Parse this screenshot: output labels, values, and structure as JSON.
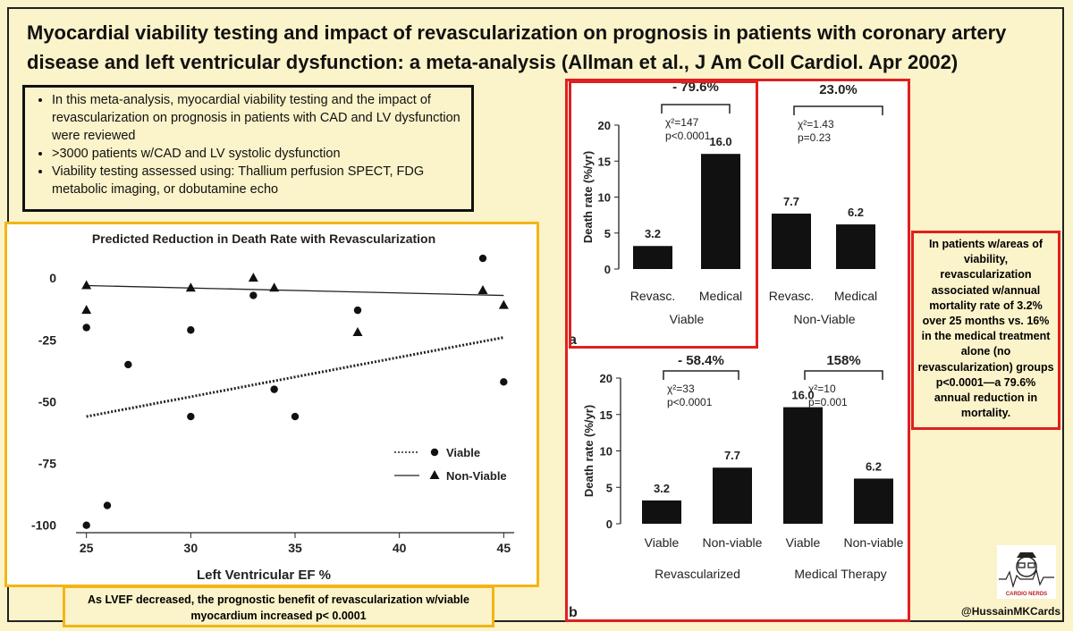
{
  "title": "Myocardial viability testing and impact of revascularization on prognosis in patients with coronary artery disease and left ventricular dysfunction: a meta-analysis (Allman et al., J Am Coll Cardiol. Apr 2002)",
  "bullets": [
    "In this meta-analysis, myocardial viability testing and the impact of revascularization on prognosis in patients with CAD and LV dysfunction were reviewed",
    ">3000 patients w/CAD and LV systolic dysfunction",
    "Viability testing assessed using: Thallium perfusion SPECT, FDG metabolic imaging, or dobutamine echo"
  ],
  "left_caption": "As LVEF decreased, the prognostic benefit of  revascularization w/viable myocardium increased p< 0.0001",
  "side_note": "In patients w/areas of viability, revascularization associated w/annual mortality rate of 3.2% over 25 months vs. 16% in the medical treatment alone (no revascularization) groups p<0.0001—a 79.6% annual reduction in mortality.",
  "handle": "@HussainMKCards",
  "logo_text": "CARDIO NERDS",
  "chart_data": [
    {
      "type": "scatter",
      "title": "Predicted Reduction in Death Rate with Revascularization",
      "xlabel": "Left Ventricular EF %",
      "ylabel": "",
      "xlim": [
        24.5,
        45.5
      ],
      "ylim": [
        -103,
        12
      ],
      "xticks": [
        25,
        30,
        35,
        40,
        45
      ],
      "yticks": [
        0,
        -25,
        -50,
        -75,
        -100
      ],
      "legend": {
        "position": "bottom-right",
        "entries": [
          "Viable",
          "Non-Viable"
        ]
      },
      "series": [
        {
          "name": "Viable",
          "marker": "circle",
          "points": [
            [
              25,
              -20
            ],
            [
              25,
              -100
            ],
            [
              26,
              -92
            ],
            [
              27,
              -35
            ],
            [
              30,
              -21
            ],
            [
              30,
              -56
            ],
            [
              33,
              -7
            ],
            [
              34,
              -45
            ],
            [
              35,
              -56
            ],
            [
              38,
              -13
            ],
            [
              44,
              8
            ],
            [
              45,
              -42
            ]
          ]
        },
        {
          "name": "Non-Viable",
          "marker": "triangle",
          "points": [
            [
              25,
              -3
            ],
            [
              25,
              -13
            ],
            [
              30,
              -4
            ],
            [
              33,
              0
            ],
            [
              34,
              -4
            ],
            [
              38,
              -22
            ],
            [
              44,
              -5
            ],
            [
              45,
              -11
            ]
          ]
        }
      ],
      "fit_lines": [
        {
          "series": "Viable",
          "style": "dotted",
          "from": [
            25,
            -56
          ],
          "to": [
            45,
            -24
          ]
        },
        {
          "series": "Non-Viable",
          "style": "solid",
          "from": [
            25,
            -3
          ],
          "to": [
            45,
            -7
          ]
        }
      ]
    },
    {
      "type": "bar",
      "label": "a",
      "ylabel": "Death rate (%/yr)",
      "ylim": [
        0,
        20
      ],
      "yticks": [
        0,
        5,
        10,
        15,
        20
      ],
      "categories": [
        "Revasc.",
        "Medical",
        "Revasc.",
        "Medical"
      ],
      "groups": [
        "Viable",
        "Non-Viable"
      ],
      "values": [
        3.2,
        16.0,
        7.7,
        6.2
      ],
      "value_labels": [
        "3.2",
        "16.0",
        "7.7",
        "6.2"
      ],
      "annotations": [
        {
          "group": "Viable",
          "pct": "- 79.6%",
          "chi": "χ²=147",
          "p": "p<0.0001"
        },
        {
          "group": "Non-Viable",
          "pct": "23.0%",
          "chi": "χ²=1.43",
          "p": "p=0.23"
        }
      ]
    },
    {
      "type": "bar",
      "label": "b",
      "ylabel": "Death rate (%/yr)",
      "ylim": [
        0,
        20
      ],
      "yticks": [
        0,
        5,
        10,
        15,
        20
      ],
      "categories": [
        "Viable",
        "Non-viable",
        "Viable",
        "Non-viable"
      ],
      "groups": [
        "Revascularized",
        "Medical Therapy"
      ],
      "values": [
        3.2,
        7.7,
        16.0,
        6.2
      ],
      "value_labels": [
        "3.2",
        "7.7",
        "16.0",
        "6.2"
      ],
      "annotations": [
        {
          "group": "Revascularized",
          "pct": "- 58.4%",
          "chi": "χ²=33",
          "p": "p<0.0001"
        },
        {
          "group": "Medical Therapy",
          "pct": "158%",
          "chi": "χ²=10",
          "p": "p=0.001"
        }
      ]
    }
  ]
}
